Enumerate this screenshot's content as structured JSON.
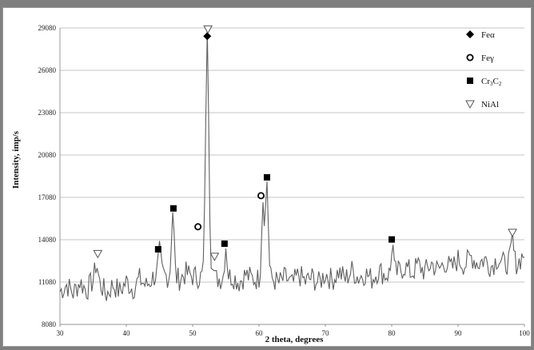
{
  "chart_data": {
    "type": "line",
    "title": "",
    "xlabel": "2 theta, degrees",
    "ylabel": "Intensity, imp/s",
    "xlim": [
      30,
      100
    ],
    "ylim": [
      8080,
      29080
    ],
    "x_ticks": [
      "30",
      "40",
      "50",
      "60",
      "70",
      "80",
      "90",
      "100"
    ],
    "y_ticks": [
      "8080",
      "11080",
      "14080",
      "17080",
      "20080",
      "23080",
      "26080",
      "29080"
    ],
    "grid": "horizontal",
    "legend_position": "top-right",
    "legend": [
      {
        "label": "Feα",
        "marker": "filled-diamond"
      },
      {
        "label": "Feγ",
        "marker": "open-circle"
      },
      {
        "label": "Cr3C2",
        "marker": "filled-square"
      },
      {
        "label": "NiAl",
        "marker": "open-triangle-down"
      }
    ],
    "line_color": "#606060",
    "series": [
      {
        "baseline": [
          [
            30,
            10400
          ],
          [
            31,
            10900
          ],
          [
            32,
            10300
          ],
          [
            33,
            11100
          ],
          [
            34,
            10500
          ],
          [
            35,
            11200
          ],
          [
            35.5,
            12300
          ],
          [
            36,
            11000
          ],
          [
            37,
            10200
          ],
          [
            38,
            10900
          ],
          [
            39,
            10400
          ],
          [
            40,
            11100
          ],
          [
            41,
            10600
          ],
          [
            42,
            11300
          ],
          [
            43,
            10800
          ],
          [
            44,
            11400
          ],
          [
            45,
            11800
          ],
          [
            46,
            11500
          ],
          [
            48,
            11300
          ],
          [
            49,
            11700
          ],
          [
            50,
            11500
          ],
          [
            53.5,
            11300
          ],
          [
            56,
            11500
          ],
          [
            57,
            11100
          ],
          [
            58,
            11600
          ],
          [
            59,
            11300
          ],
          [
            62,
            11300
          ],
          [
            63,
            11000
          ],
          [
            64,
            11400
          ],
          [
            65,
            10900
          ],
          [
            66,
            11600
          ],
          [
            67,
            11100
          ],
          [
            68,
            11400
          ],
          [
            69,
            11000
          ],
          [
            70,
            11700
          ],
          [
            71,
            11200
          ],
          [
            72,
            11800
          ],
          [
            73,
            11300
          ],
          [
            74,
            11900
          ],
          [
            75,
            11400
          ],
          [
            76,
            11700
          ],
          [
            77,
            11300
          ],
          [
            78,
            11900
          ],
          [
            79,
            11600
          ],
          [
            81,
            11800
          ],
          [
            82,
            12200
          ],
          [
            83,
            11700
          ],
          [
            84,
            12300
          ],
          [
            85,
            11800
          ],
          [
            86,
            12400
          ],
          [
            87,
            11900
          ],
          [
            88,
            12500
          ],
          [
            89,
            12000
          ],
          [
            90,
            12700
          ],
          [
            91,
            12300
          ],
          [
            92,
            12900
          ],
          [
            93,
            12400
          ],
          [
            94,
            12700
          ],
          [
            95,
            12200
          ],
          [
            96,
            12800
          ],
          [
            97,
            12300
          ],
          [
            98,
            12700
          ],
          [
            99,
            12400
          ],
          [
            100,
            13200
          ]
        ],
        "peaks": [
          [
            35.5,
            12500,
            0.25
          ],
          [
            45,
            13200,
            0.25
          ],
          [
            47,
            16200,
            0.28
          ],
          [
            52.2,
            28400,
            0.35
          ],
          [
            53,
            12700,
            0.2
          ],
          [
            55,
            13700,
            0.25
          ],
          [
            60.6,
            17000,
            0.3
          ],
          [
            61.2,
            18200,
            0.28
          ],
          [
            80.1,
            14000,
            0.2
          ],
          [
            98.2,
            14300,
            0.2
          ]
        ]
      }
    ],
    "markers": [
      {
        "phase": "Feα",
        "shape": "filled-diamond",
        "x": 52.2,
        "y": 28500
      },
      {
        "phase": "Feγ",
        "shape": "open-circle",
        "x": 50.8,
        "y": 15000
      },
      {
        "phase": "Feγ",
        "shape": "open-circle",
        "x": 60.3,
        "y": 17200
      },
      {
        "phase": "Cr3C2",
        "shape": "filled-square",
        "x": 44.8,
        "y": 13400
      },
      {
        "phase": "Cr3C2",
        "shape": "filled-square",
        "x": 47.1,
        "y": 16300
      },
      {
        "phase": "Cr3C2",
        "shape": "filled-square",
        "x": 54.8,
        "y": 13800
      },
      {
        "phase": "Cr3C2",
        "shape": "filled-square",
        "x": 61.2,
        "y": 18500
      },
      {
        "phase": "Cr3C2",
        "shape": "filled-square",
        "x": 80.0,
        "y": 14100
      },
      {
        "phase": "NiAl",
        "shape": "open-triangle-down",
        "x": 35.7,
        "y": 13100
      },
      {
        "phase": "NiAl",
        "shape": "open-triangle-down",
        "x": 52.3,
        "y": 29000
      },
      {
        "phase": "NiAl",
        "shape": "open-triangle-down",
        "x": 53.3,
        "y": 12900
      },
      {
        "phase": "NiAl",
        "shape": "open-triangle-down",
        "x": 98.2,
        "y": 14600
      }
    ]
  }
}
